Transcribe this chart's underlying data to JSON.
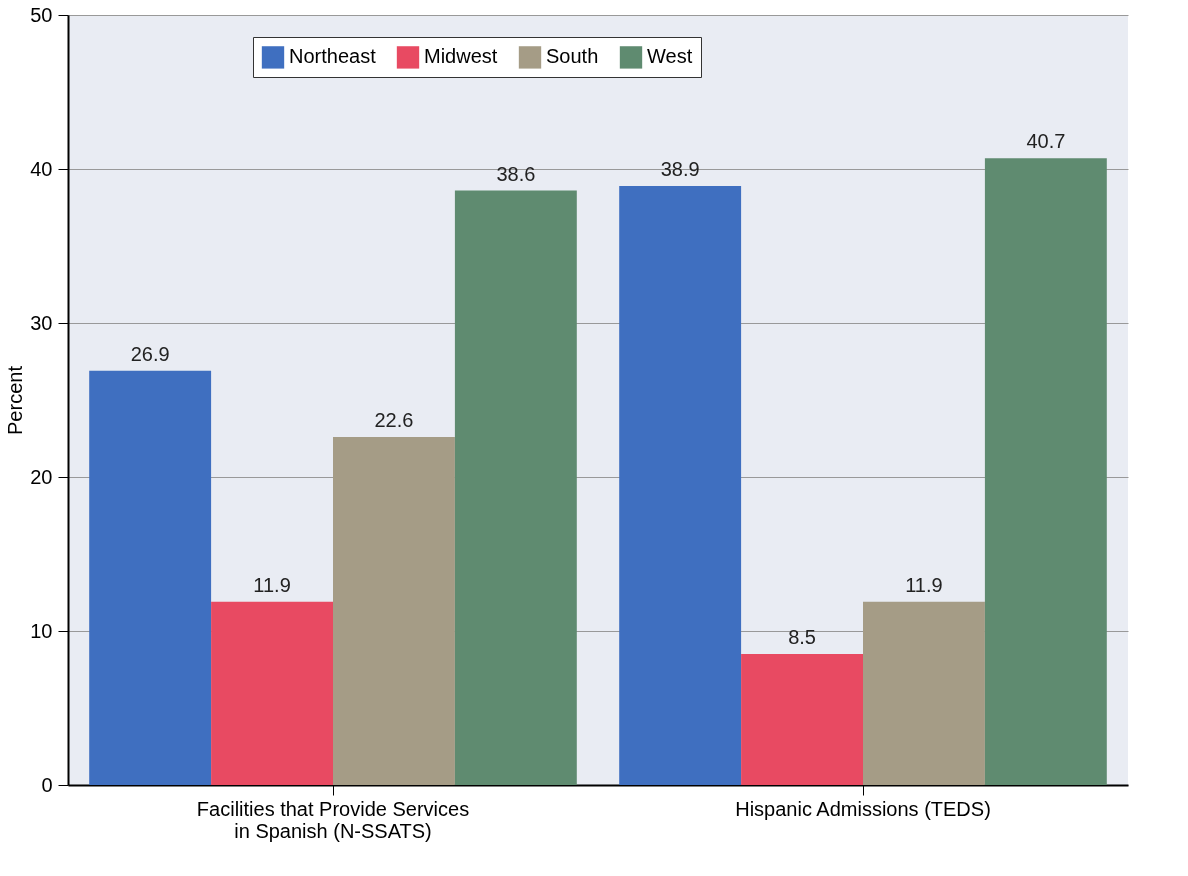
{
  "chart_data": {
    "type": "bar",
    "ylabel": "Percent",
    "categories": [
      "Facilities that Provide Services in Spanish (N-SSATS)",
      "Hispanic Admissions (TEDS)"
    ],
    "series": [
      {
        "name": "Northeast",
        "color": "#3f6fc0",
        "values": [
          26.9,
          38.9
        ]
      },
      {
        "name": "Midwest",
        "color": "#e84a62",
        "values": [
          11.9,
          8.5
        ]
      },
      {
        "name": "South",
        "color": "#a59c86",
        "values": [
          22.6,
          11.9
        ]
      },
      {
        "name": "West",
        "color": "#5f8b70",
        "values": [
          38.6,
          40.7
        ]
      }
    ],
    "ylim": [
      0,
      50
    ],
    "yticks": [
      0,
      10,
      20,
      30,
      40,
      50
    ],
    "grid": "y",
    "legend": "top",
    "data_labels": true
  }
}
